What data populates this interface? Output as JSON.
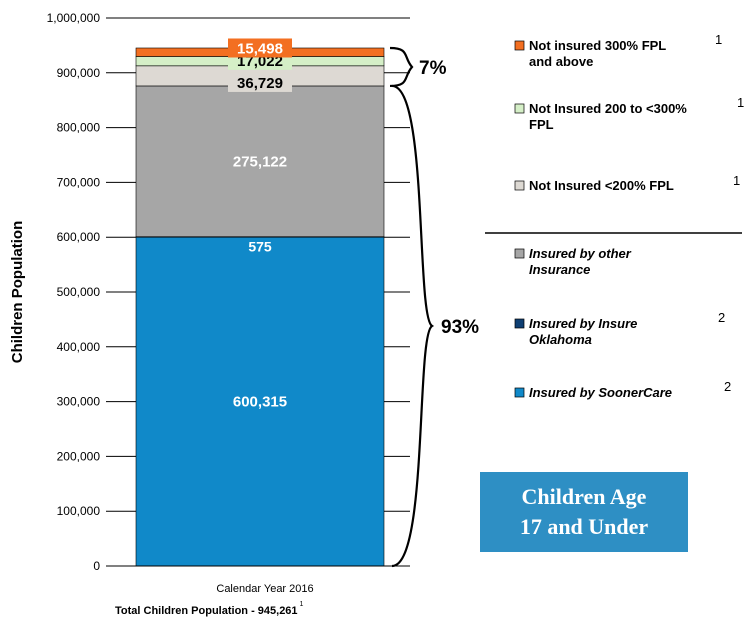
{
  "chart_data": {
    "type": "bar",
    "stacked": true,
    "categories": [
      "Calendar Year 2016"
    ],
    "ylabel": "Children Population",
    "ylim": [
      0,
      1000000
    ],
    "yticks": [
      "0",
      "100,000",
      "200,000",
      "300,000",
      "400,000",
      "500,000",
      "600,000",
      "700,000",
      "800,000",
      "900,000",
      "1,000,000"
    ],
    "grid": true,
    "legend_position": "right",
    "footer": "Total Children Population - 945,261",
    "footer_sup": "1",
    "series": [
      {
        "name": "Insured by SoonerCare",
        "sup": "2",
        "italic": true,
        "value": 600315,
        "label": "600,315",
        "color": "#1089C9"
      },
      {
        "name": "Insured by Insure Oklahoma",
        "sup": "2",
        "italic": true,
        "value": 575,
        "label": "575",
        "color": "#0E3F73"
      },
      {
        "name": "Insured by other Insurance",
        "sup": "",
        "italic": true,
        "value": 275122,
        "label": "275,122",
        "color": "#A6A6A6"
      },
      {
        "name": "Not Insured <200% FPL",
        "sup": "1",
        "italic": false,
        "value": 36729,
        "label": "36,729",
        "color": "#DDD9D3"
      },
      {
        "name": "Not Insured 200 to <300% FPL",
        "sup": "1",
        "italic": false,
        "value": 17022,
        "label": "17,022",
        "color": "#D5EFC7"
      },
      {
        "name": "Not insured 300% FPL and above",
        "sup": "1",
        "italic": false,
        "value": 15498,
        "label": "15,498",
        "color": "#F36F21"
      }
    ],
    "annotations": [
      {
        "text": "7%",
        "covers": "not insured"
      },
      {
        "text": "93%",
        "covers": "insured"
      }
    ]
  },
  "badge": {
    "line1": "Children Age",
    "line2": "17 and Under"
  }
}
